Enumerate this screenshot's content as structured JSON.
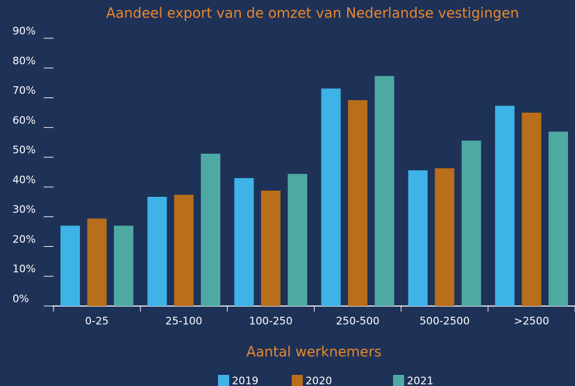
{
  "chart_data": {
    "type": "bar",
    "title": "Aandeel export van de omzet van Nederlandse vestigingen",
    "x_label": "Aantal werknemers",
    "categories": [
      "0-25",
      "25-100",
      "100-250",
      "250-500",
      "500-2500",
      ">2500"
    ],
    "series": [
      {
        "name": "2019",
        "color": "#3db3e8",
        "values": [
          27,
          36.7,
          43,
          73.1,
          45.6,
          67.3
        ]
      },
      {
        "name": "2020",
        "color": "#b86e1a",
        "values": [
          29.4,
          37.4,
          38.8,
          69.2,
          46.3,
          65
        ]
      },
      {
        "name": "2021",
        "color": "#4fa9a3",
        "values": [
          27,
          51.2,
          44.4,
          77.3,
          55.6,
          58.6
        ]
      }
    ],
    "ylim": [
      0,
      90
    ],
    "yticks": [
      {
        "value": 0,
        "label": "0%"
      },
      {
        "value": 10,
        "label": "10%"
      },
      {
        "value": 20,
        "label": "20%"
      },
      {
        "value": 30,
        "label": "30%"
      },
      {
        "value": 40,
        "label": "40%"
      },
      {
        "value": 50,
        "label": "50%"
      },
      {
        "value": 60,
        "label": "60%"
      },
      {
        "value": 70,
        "label": "70%"
      },
      {
        "value": 80,
        "label": "80%"
      },
      {
        "value": 90,
        "label": "90%"
      }
    ],
    "grid": false
  }
}
